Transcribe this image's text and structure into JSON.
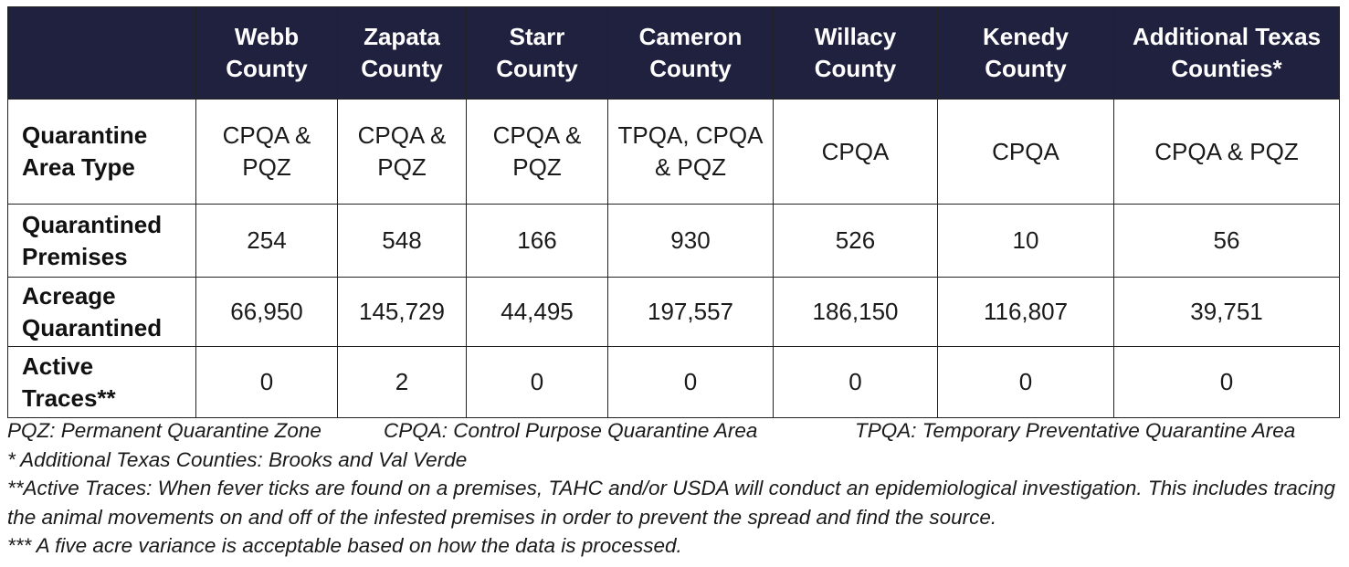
{
  "table": {
    "columns": [
      {
        "line1": "Webb",
        "line2": "County"
      },
      {
        "line1": "Zapata",
        "line2": "County"
      },
      {
        "line1": "Starr",
        "line2": "County"
      },
      {
        "line1": "Cameron",
        "line2": "County"
      },
      {
        "line1": "Willacy",
        "line2": "County"
      },
      {
        "line1": "Kenedy",
        "line2": "County"
      },
      {
        "line1": "Additional Texas",
        "line2": "Counties*"
      }
    ],
    "rows": [
      {
        "label_line1": "Quarantine",
        "label_line2": "Area Type",
        "cells": [
          {
            "line1": "CPQA &",
            "line2": "PQZ"
          },
          {
            "line1": "CPQA &",
            "line2": "PQZ"
          },
          {
            "line1": "CPQA &",
            "line2": "PQZ"
          },
          {
            "line1": "TPQA, CPQA",
            "line2": "& PQZ"
          },
          {
            "line1": "CPQA",
            "line2": ""
          },
          {
            "line1": "CPQA",
            "line2": ""
          },
          {
            "line1": "CPQA & PQZ",
            "line2": ""
          }
        ]
      },
      {
        "label_line1": "Quarantined",
        "label_line2": "Premises",
        "cells": [
          "254",
          "548",
          "166",
          "930",
          "526",
          "10",
          "56"
        ]
      },
      {
        "label_line1": "Acreage",
        "label_line2": "Quarantined",
        "cells": [
          "66,950",
          "145,729",
          "44,495",
          "197,557",
          "186,150",
          "116,807",
          "39,751"
        ]
      },
      {
        "label_line1": "Active",
        "label_line2": "Traces**",
        "cells": [
          "0",
          "2",
          "0",
          "0",
          "0",
          "0",
          "0"
        ]
      }
    ]
  },
  "notes": {
    "legend_pqz": "PQZ: Permanent Quarantine Zone",
    "legend_cpqa": "CPQA: Control Purpose Quarantine Area",
    "legend_tpqa": "TPQA: Temporary Preventative Quarantine Area",
    "additional": "* Additional Texas Counties: Brooks and Val Verde",
    "active_traces": "**Active Traces: When fever ticks are found on a premises, TAHC and/or USDA will conduct an epidemiological investigation. This includes tracing the animal movements on and off of the infested premises in order to prevent the spread and find the source.",
    "variance": "*** A five acre variance is acceptable based on how the data is processed."
  }
}
